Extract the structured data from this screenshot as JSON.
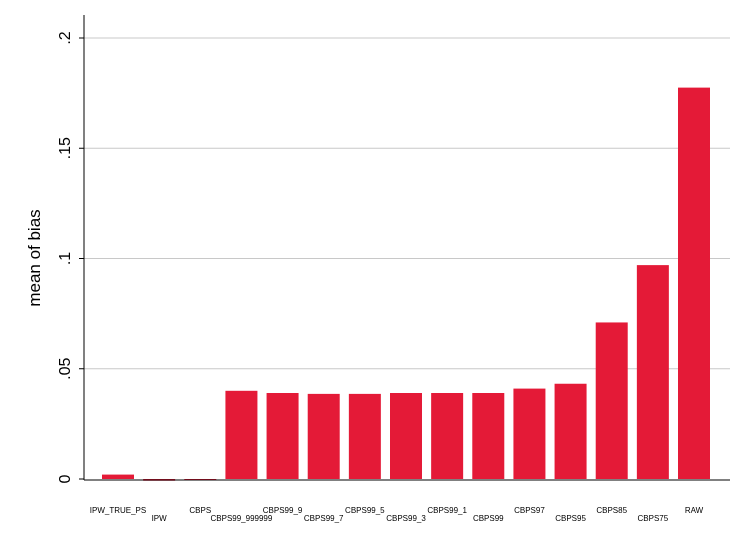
{
  "chart_data": {
    "type": "bar",
    "title": "",
    "xlabel": "",
    "ylabel": "mean of bias",
    "ylim": [
      0,
      0.2
    ],
    "yticks": [
      0,
      0.05,
      0.1,
      0.15,
      0.2
    ],
    "ytick_labels": [
      "0",
      ".05",
      ".1",
      ".15",
      ".2"
    ],
    "grid": true,
    "legend": "none",
    "categories": [
      "IPW_TRUE_PS",
      "IPW",
      "CBPS",
      "CBPS99_999999",
      "CBPS99_9",
      "CBPS99_7",
      "CBPS99_5",
      "CBPS99_3",
      "CBPS99_1",
      "CBPS99",
      "CBPS97",
      "CBPS95",
      "CBPS85",
      "CBPS75",
      "RAW"
    ],
    "values": [
      0.002,
      -0.0008,
      -0.0006,
      0.04,
      0.039,
      0.0386,
      0.0386,
      0.039,
      0.039,
      0.039,
      0.041,
      0.0432,
      0.071,
      0.097,
      0.1775
    ],
    "bar_color": "#e41a37",
    "grid_color": "#c8c8c8",
    "axis_color": "#000000"
  }
}
